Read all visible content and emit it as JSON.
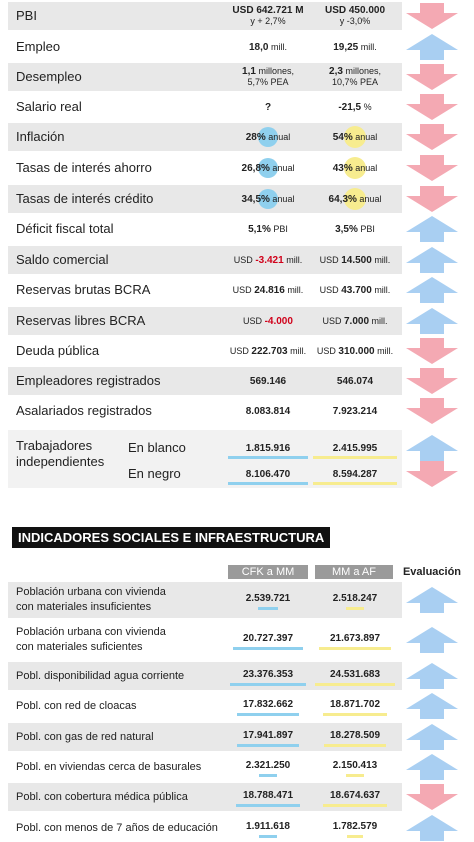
{
  "economic": {
    "rows": [
      {
        "label": [
          "PBI"
        ],
        "cfk": {
          "main": "USD 642.721 M",
          "sub": "y + 2,7%"
        },
        "mm": {
          "main": "USD 450.000",
          "sub": "y -3,0%"
        },
        "evaluation": "down"
      },
      {
        "label": [
          "Empleo"
        ],
        "cfk": {
          "main": "18,0",
          "unit": "mill."
        },
        "mm": {
          "main": "19,25",
          "unit": "mill."
        },
        "evaluation": "up"
      },
      {
        "label": [
          "Desempleo"
        ],
        "cfk": {
          "main": "1,1",
          "unit": "millones,",
          "sub": "5,7% PEA"
        },
        "mm": {
          "main": "2,3",
          "unit": "millones,",
          "sub": "10,7% PEA"
        },
        "evaluation": "down"
      },
      {
        "label": [
          "Salario real"
        ],
        "cfk": {
          "main": "?"
        },
        "mm": {
          "main": "-21,5",
          "unit": "%"
        },
        "evaluation": "down"
      },
      {
        "label": [
          "Inflación"
        ],
        "cfk": {
          "main": "28%",
          "unit": "anual"
        },
        "mm": {
          "main": "54%",
          "unit": "anual"
        },
        "evaluation": "down"
      },
      {
        "label": [
          "Tasas de interés ahorro"
        ],
        "cfk": {
          "main": "26,8%",
          "unit": "anual"
        },
        "mm": {
          "main": "43%",
          "unit": "anual"
        },
        "evaluation": "down"
      },
      {
        "label": [
          "Tasas de interés crédito"
        ],
        "cfk": {
          "main": "34,5%",
          "unit": "anual"
        },
        "mm": {
          "main": "64,3%",
          "unit": "anual"
        },
        "evaluation": "down"
      },
      {
        "label": [
          "Déficit fiscal total"
        ],
        "cfk": {
          "main": "5,1%",
          "unit": "PBI"
        },
        "mm": {
          "main": "3,5%",
          "unit": "PBI"
        },
        "evaluation": "up"
      },
      {
        "label": [
          "Saldo comercial"
        ],
        "cfk": {
          "pre": "USD",
          "main": "-3.421",
          "unit": "mill.",
          "color": "red"
        },
        "mm": {
          "pre": "USD",
          "main": "14.500",
          "unit": "mill."
        },
        "evaluation": "up"
      },
      {
        "label": [
          "Reservas brutas BCRA"
        ],
        "cfk": {
          "pre": "USD",
          "main": "24.816",
          "unit": "mill."
        },
        "mm": {
          "pre": "USD",
          "main": "43.700",
          "unit": "mill."
        },
        "evaluation": "up"
      },
      {
        "label": [
          "Reservas libres BCRA"
        ],
        "cfk": {
          "pre": "USD",
          "main": "-4.000",
          "color": "red"
        },
        "mm": {
          "pre": "USD",
          "main": "7.000",
          "unit": "mill."
        },
        "evaluation": "up"
      },
      {
        "label": [
          "Deuda pública"
        ],
        "cfk": {
          "pre": "USD",
          "main": "222.703",
          "unit": "mill."
        },
        "mm": {
          "pre": "USD",
          "main": "310.000",
          "unit": "mill."
        },
        "evaluation": "down"
      },
      {
        "label": [
          "Empleadores registrados"
        ],
        "cfk": {
          "main": "569.146"
        },
        "mm": {
          "main": "546.074"
        },
        "evaluation": "down"
      },
      {
        "label": [
          "Asalariados registrados"
        ],
        "cfk": {
          "main": "8.083.814"
        },
        "mm": {
          "main": "7.923.214"
        },
        "evaluation": "down"
      },
      {
        "label": [
          "Trabajadores",
          "independientes"
        ],
        "sub": [
          {
            "label": "En blanco",
            "cfk": {
              "main": "1.815.916"
            },
            "mm": {
              "main": "2.415.995"
            },
            "evaluation": "up"
          },
          {
            "label": "En negro",
            "cfk": {
              "main": "8.106.470"
            },
            "mm": {
              "main": "8.594.287"
            },
            "evaluation": "down"
          }
        ]
      }
    ]
  },
  "social": {
    "title": "INDICADORES SOCIALES E INFRAESTRUCTURA",
    "headers": [
      "CFK a MM",
      "MM a AF",
      "Evaluación"
    ],
    "rows": [
      {
        "label": [
          "Población urbana con vivienda",
          "con materiales insuficientes"
        ],
        "cfk": "2.539.721",
        "mm": "2.518.247",
        "evaluation": "up"
      },
      {
        "label": [
          "Población urbana con vivienda",
          "con materiales suficientes"
        ],
        "cfk": "20.727.397",
        "mm": "21.673.897",
        "evaluation": "up"
      },
      {
        "label": [
          "Pobl. disponibilidad agua corriente"
        ],
        "cfk": "23.376.353",
        "mm": "24.531.683",
        "evaluation": "up"
      },
      {
        "label": [
          "Pobl. con red de cloacas"
        ],
        "cfk": "17.832.662",
        "mm": "18.871.702",
        "evaluation": "up"
      },
      {
        "label": [
          "Pobl. con gas de red natural"
        ],
        "cfk": "17.941.897",
        "mm": "18.278.509",
        "evaluation": "up"
      },
      {
        "label": [
          "Pobl. en viviendas cerca de basurales"
        ],
        "cfk": "2.321.250",
        "mm": "2.150.413",
        "evaluation": "up"
      },
      {
        "label": [
          "Pobl. con cobertura médica pública"
        ],
        "cfk": "18.788.471",
        "mm": "18.674.637",
        "evaluation": "down"
      },
      {
        "label": [
          "Pobl. con menos de 7 años de educación"
        ],
        "cfk": "1.911.618",
        "mm": "1.782.579",
        "evaluation": "up"
      }
    ]
  }
}
